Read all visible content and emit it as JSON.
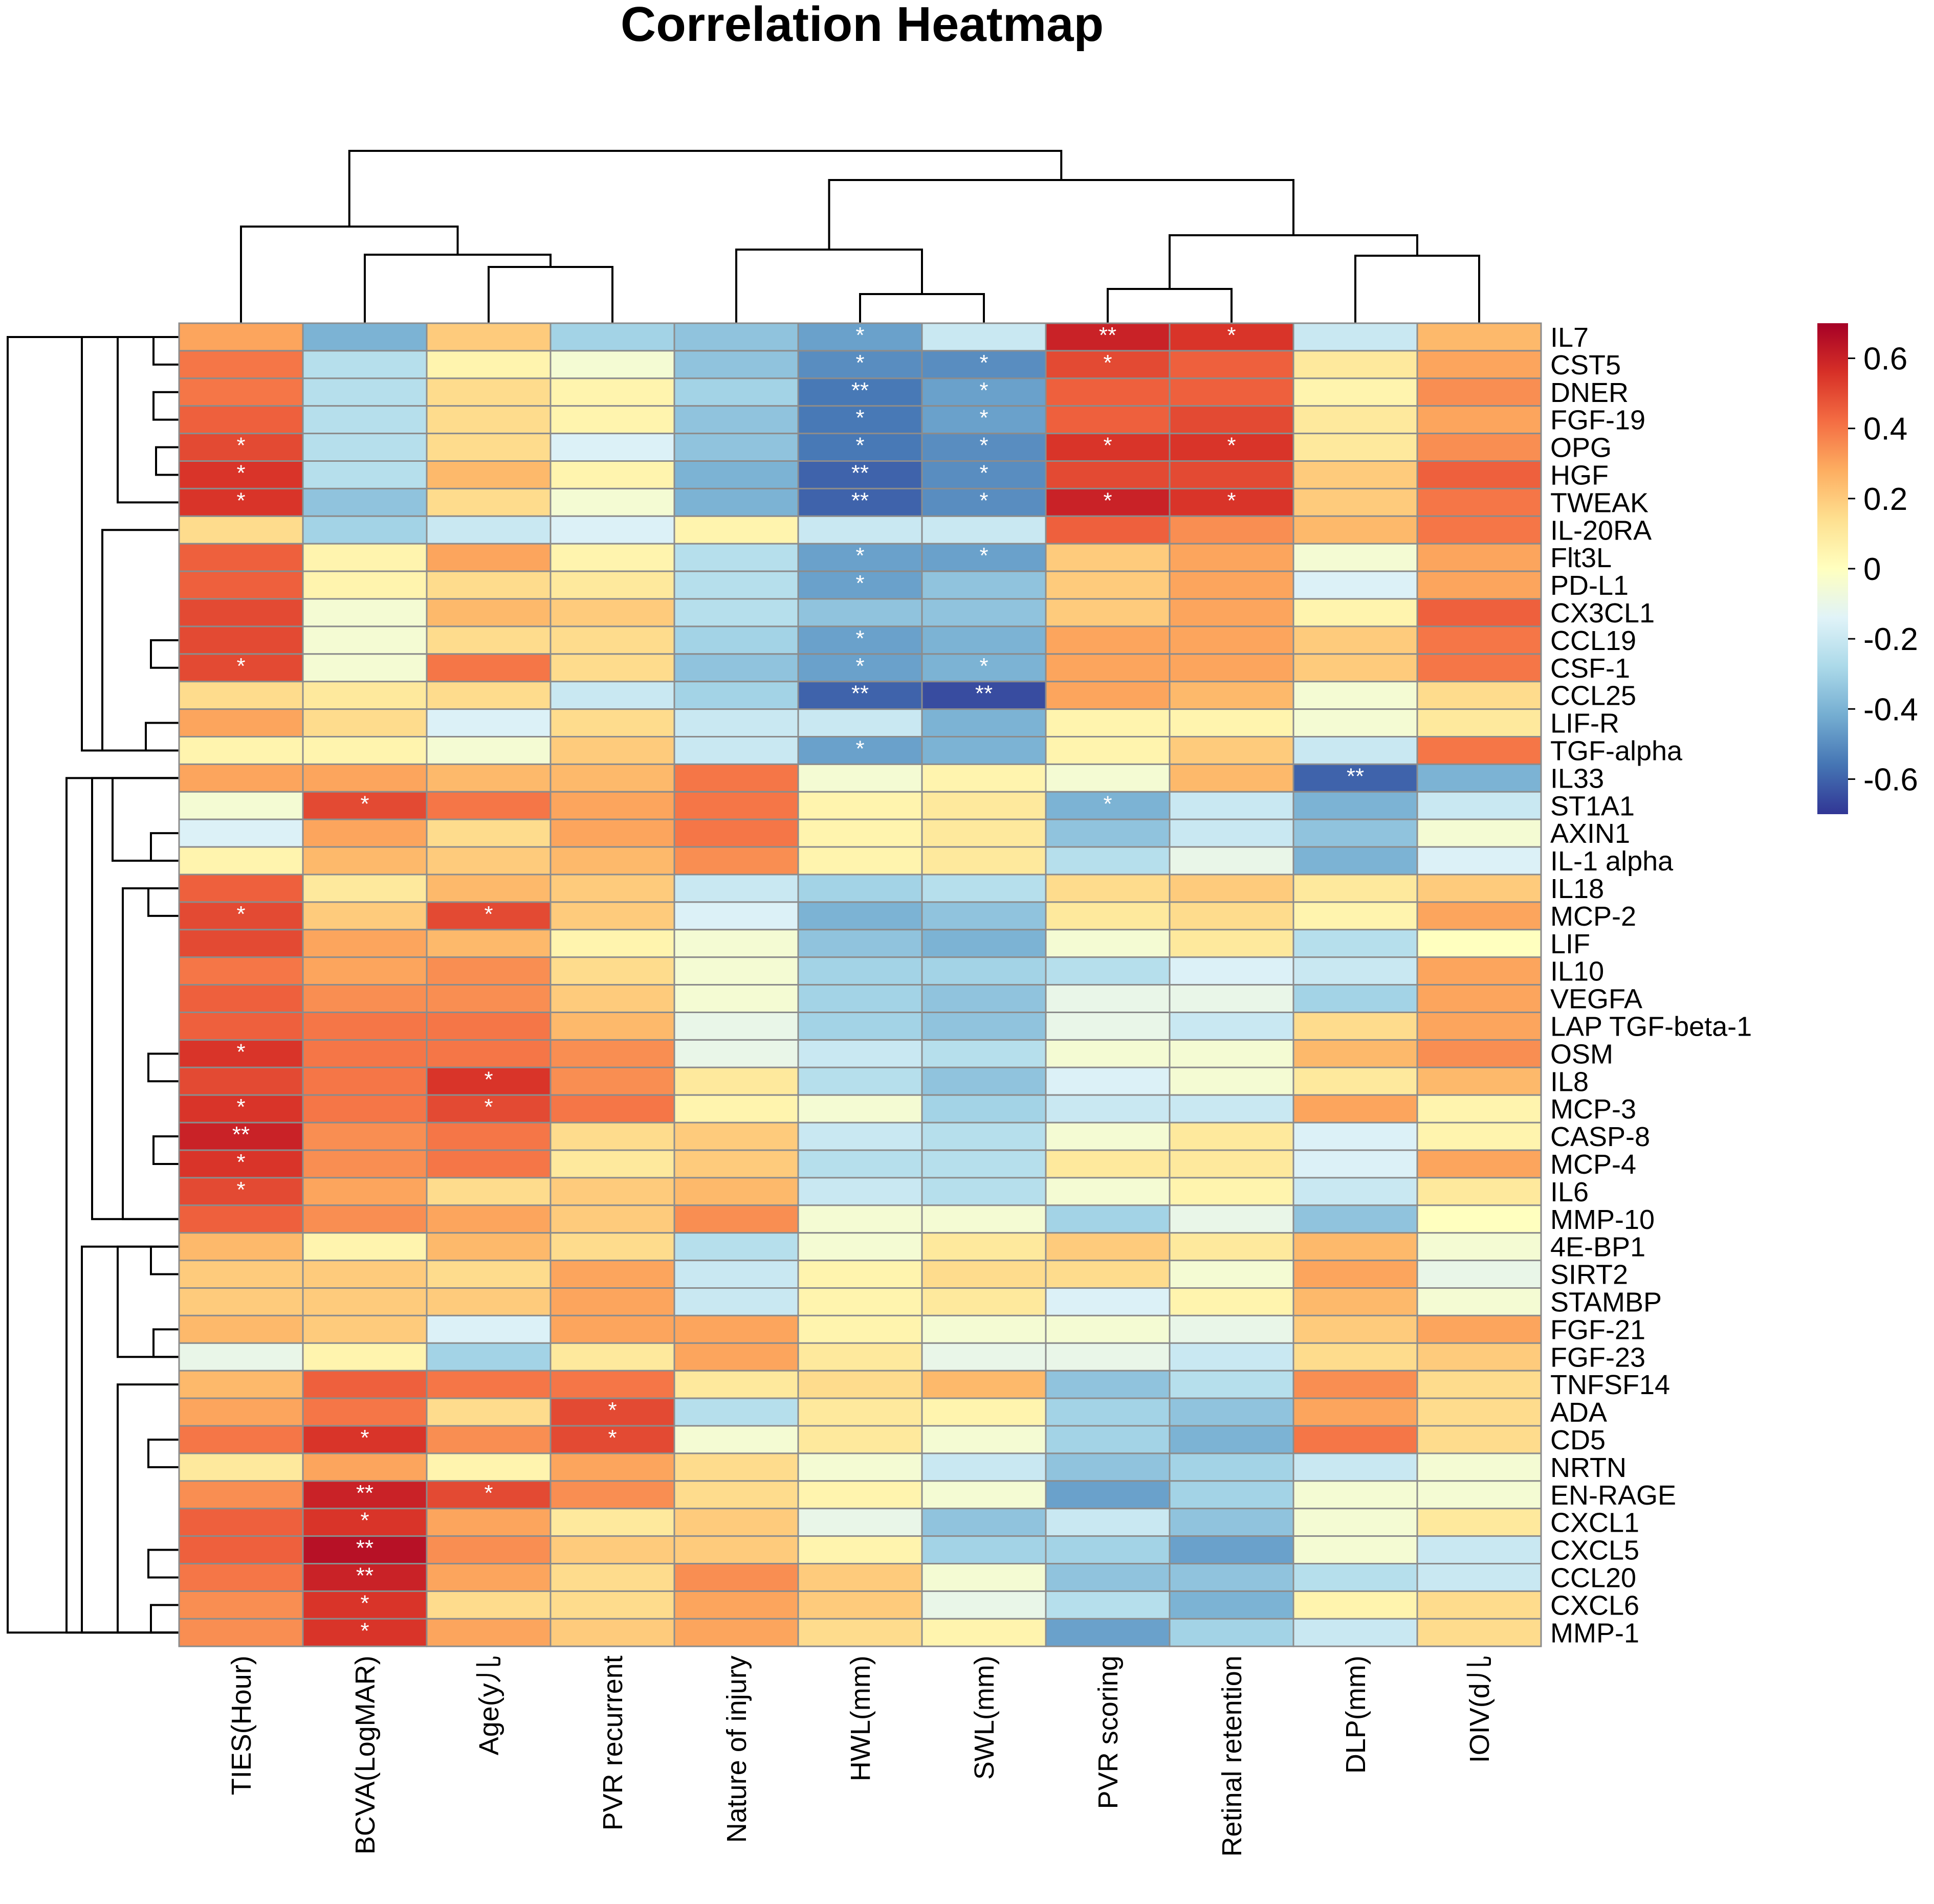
{
  "chart_data": {
    "type": "heatmap",
    "title": "Correlation Heatmap",
    "xlabel": "",
    "ylabel": "",
    "columns": [
      "TIES(Hour)",
      "BCVA(LogMAR)",
      "Age(y⼉",
      "PVR recurrent",
      "Nature of injury",
      "HWL(mm)",
      "SWL(mm)",
      "PVR scoring",
      "Retinal retention",
      "DLP(mm)",
      "IOIV(d⼉"
    ],
    "rows": [
      "IL7",
      "CST5",
      "DNER",
      "FGF-19",
      "OPG",
      "HGF",
      "TWEAK",
      "IL-20RA",
      "Flt3L",
      "PD-L1",
      "CX3CL1",
      "CCL19",
      "CSF-1",
      "CCL25",
      "LIF-R",
      "TGF-alpha",
      "IL33",
      "ST1A1",
      "AXIN1",
      "IL-1 alpha",
      "IL18",
      "MCP-2",
      "LIF",
      "IL10",
      "VEGFA",
      "LAP TGF-beta-1",
      "OSM",
      "IL8",
      "MCP-3",
      "CASP-8",
      "MCP-4",
      "IL6",
      "MMP-10",
      "4E-BP1",
      "SIRT2",
      "STAMBP",
      "FGF-21",
      "FGF-23",
      "TNFSF14",
      "ADA",
      "CD5",
      "NRTN",
      "EN-RAGE",
      "CXCL1",
      "CXCL5",
      "CCL20",
      "CXCL6",
      "MMP-1"
    ],
    "values": [
      [
        0.3,
        -0.4,
        0.2,
        -0.3,
        -0.35,
        -0.45,
        -0.2,
        0.6,
        0.55,
        -0.2,
        0.25
      ],
      [
        0.4,
        -0.25,
        0.05,
        -0.05,
        -0.35,
        -0.5,
        -0.5,
        0.5,
        0.45,
        0.1,
        0.3
      ],
      [
        0.4,
        -0.25,
        0.15,
        0.05,
        -0.3,
        -0.55,
        -0.45,
        0.45,
        0.45,
        0.05,
        0.35
      ],
      [
        0.45,
        -0.25,
        0.15,
        0.05,
        -0.35,
        -0.55,
        -0.45,
        0.45,
        0.5,
        0.1,
        0.3
      ],
      [
        0.5,
        -0.25,
        0.15,
        -0.15,
        -0.35,
        -0.55,
        -0.5,
        0.55,
        0.55,
        0.1,
        0.35
      ],
      [
        0.55,
        -0.25,
        0.25,
        0.05,
        -0.4,
        -0.6,
        -0.5,
        0.5,
        0.5,
        0.2,
        0.45
      ],
      [
        0.55,
        -0.35,
        0.15,
        -0.05,
        -0.4,
        -0.6,
        -0.5,
        0.6,
        0.55,
        0.2,
        0.4
      ],
      [
        0.15,
        -0.3,
        -0.2,
        -0.15,
        0.05,
        -0.2,
        -0.2,
        0.45,
        0.35,
        0.25,
        0.4
      ],
      [
        0.45,
        0.05,
        0.3,
        0.05,
        -0.25,
        -0.45,
        -0.45,
        0.2,
        0.3,
        -0.05,
        0.3
      ],
      [
        0.45,
        0.05,
        0.15,
        0.1,
        -0.25,
        -0.45,
        -0.35,
        0.2,
        0.3,
        -0.15,
        0.3
      ],
      [
        0.5,
        -0.05,
        0.25,
        0.2,
        -0.25,
        -0.35,
        -0.35,
        0.2,
        0.3,
        0.05,
        0.45
      ],
      [
        0.5,
        -0.05,
        0.15,
        0.15,
        -0.3,
        -0.45,
        -0.4,
        0.3,
        0.3,
        0.2,
        0.4
      ],
      [
        0.5,
        -0.05,
        0.4,
        0.15,
        -0.35,
        -0.45,
        -0.4,
        0.3,
        0.3,
        0.2,
        0.4
      ],
      [
        0.15,
        0.1,
        0.15,
        -0.2,
        -0.3,
        -0.6,
        -0.65,
        0.3,
        0.25,
        -0.05,
        0.15
      ],
      [
        0.3,
        0.15,
        -0.15,
        0.15,
        -0.2,
        -0.2,
        -0.4,
        0.05,
        0.05,
        -0.05,
        0.1
      ],
      [
        0.05,
        0.05,
        -0.05,
        0.2,
        -0.2,
        -0.45,
        -0.4,
        0.05,
        0.2,
        -0.2,
        0.4
      ],
      [
        0.3,
        0.3,
        0.25,
        0.25,
        0.4,
        -0.05,
        0.05,
        -0.05,
        0.25,
        -0.6,
        -0.4
      ],
      [
        -0.05,
        0.5,
        0.4,
        0.3,
        0.4,
        0.05,
        0.1,
        -0.4,
        -0.2,
        -0.4,
        -0.2
      ],
      [
        -0.15,
        0.3,
        0.15,
        0.3,
        0.4,
        0.05,
        0.1,
        -0.35,
        -0.2,
        -0.35,
        -0.05
      ],
      [
        0.05,
        0.25,
        0.2,
        0.25,
        0.35,
        0.05,
        0.1,
        -0.25,
        -0.1,
        -0.4,
        -0.15
      ],
      [
        0.45,
        0.1,
        0.25,
        0.2,
        -0.2,
        -0.3,
        -0.25,
        0.15,
        0.2,
        0.1,
        0.2
      ],
      [
        0.5,
        0.2,
        0.5,
        0.2,
        -0.15,
        -0.4,
        -0.35,
        0.1,
        0.15,
        0.05,
        0.3
      ],
      [
        0.5,
        0.3,
        0.25,
        0.05,
        -0.05,
        -0.35,
        -0.4,
        -0.05,
        0.1,
        -0.25,
        0.0
      ],
      [
        0.4,
        0.3,
        0.35,
        0.15,
        -0.05,
        -0.3,
        -0.3,
        -0.25,
        -0.15,
        -0.2,
        0.3
      ],
      [
        0.45,
        0.35,
        0.35,
        0.2,
        -0.05,
        -0.3,
        -0.35,
        -0.1,
        -0.1,
        -0.3,
        0.3
      ],
      [
        0.45,
        0.4,
        0.4,
        0.25,
        -0.1,
        -0.3,
        -0.35,
        -0.1,
        -0.2,
        0.15,
        0.3
      ],
      [
        0.55,
        0.4,
        0.4,
        0.35,
        -0.1,
        -0.2,
        -0.25,
        -0.05,
        -0.05,
        0.25,
        0.35
      ],
      [
        0.5,
        0.4,
        0.55,
        0.35,
        0.1,
        -0.25,
        -0.35,
        -0.15,
        -0.05,
        0.1,
        0.25
      ],
      [
        0.55,
        0.4,
        0.5,
        0.4,
        0.05,
        -0.05,
        -0.3,
        -0.2,
        -0.2,
        0.3,
        0.05
      ],
      [
        0.6,
        0.35,
        0.4,
        0.15,
        0.2,
        -0.2,
        -0.25,
        -0.05,
        0.1,
        -0.15,
        0.05
      ],
      [
        0.55,
        0.35,
        0.4,
        0.1,
        0.2,
        -0.25,
        -0.25,
        0.1,
        0.1,
        -0.15,
        0.3
      ],
      [
        0.5,
        0.3,
        0.15,
        0.2,
        0.25,
        -0.2,
        -0.25,
        -0.05,
        0.05,
        -0.2,
        0.1
      ],
      [
        0.45,
        0.35,
        0.3,
        0.2,
        0.35,
        -0.05,
        -0.05,
        -0.3,
        -0.1,
        -0.35,
        0.0
      ],
      [
        0.25,
        0.05,
        0.25,
        0.15,
        -0.25,
        -0.05,
        0.1,
        0.2,
        0.1,
        0.25,
        -0.05
      ],
      [
        0.2,
        0.2,
        0.15,
        0.3,
        -0.2,
        0.05,
        0.15,
        0.15,
        -0.05,
        0.3,
        -0.1
      ],
      [
        0.2,
        0.2,
        0.2,
        0.3,
        -0.2,
        0.05,
        0.1,
        -0.15,
        0.05,
        0.25,
        -0.05
      ],
      [
        0.25,
        0.2,
        -0.15,
        0.3,
        0.3,
        0.05,
        -0.05,
        -0.05,
        -0.1,
        0.2,
        0.3
      ],
      [
        -0.1,
        0.05,
        -0.3,
        0.1,
        0.3,
        0.1,
        -0.1,
        -0.1,
        -0.2,
        0.15,
        0.2
      ],
      [
        0.25,
        0.45,
        0.4,
        0.4,
        0.1,
        0.15,
        0.25,
        -0.35,
        -0.25,
        0.35,
        0.15
      ],
      [
        0.3,
        0.4,
        0.15,
        0.5,
        -0.25,
        0.1,
        0.05,
        -0.3,
        -0.35,
        0.3,
        0.15
      ],
      [
        0.4,
        0.55,
        0.35,
        0.5,
        -0.05,
        0.1,
        -0.05,
        -0.3,
        -0.4,
        0.4,
        0.15
      ],
      [
        0.1,
        0.3,
        0.05,
        0.3,
        0.15,
        -0.05,
        -0.2,
        -0.35,
        -0.3,
        -0.2,
        -0.05
      ],
      [
        0.35,
        0.6,
        0.5,
        0.35,
        0.15,
        0.05,
        -0.05,
        -0.45,
        -0.3,
        -0.05,
        -0.05
      ],
      [
        0.45,
        0.55,
        0.3,
        0.1,
        0.2,
        -0.1,
        -0.35,
        -0.2,
        -0.35,
        -0.05,
        0.1
      ],
      [
        0.45,
        0.65,
        0.35,
        0.2,
        0.2,
        0.05,
        -0.3,
        -0.3,
        -0.45,
        -0.05,
        -0.2
      ],
      [
        0.4,
        0.6,
        0.3,
        0.15,
        0.35,
        0.2,
        -0.05,
        -0.35,
        -0.35,
        -0.25,
        -0.2
      ],
      [
        0.35,
        0.55,
        0.15,
        0.15,
        0.3,
        0.2,
        -0.1,
        -0.25,
        -0.4,
        0.05,
        0.15
      ],
      [
        0.35,
        0.55,
        0.3,
        0.2,
        0.3,
        0.15,
        0.05,
        -0.45,
        -0.3,
        -0.2,
        0.15
      ]
    ],
    "significance": [
      [
        "",
        "",
        "",
        "",
        "",
        "*",
        "",
        "**",
        "*",
        "",
        ""
      ],
      [
        "",
        "",
        "",
        "",
        "",
        "*",
        "*",
        "*",
        "",
        "",
        ""
      ],
      [
        "",
        "",
        "",
        "",
        "",
        "**",
        "*",
        "",
        "",
        "",
        ""
      ],
      [
        "",
        "",
        "",
        "",
        "",
        "*",
        "*",
        "",
        "",
        "",
        ""
      ],
      [
        "*",
        "",
        "",
        "",
        "",
        "*",
        "*",
        "*",
        "*",
        "",
        ""
      ],
      [
        "*",
        "",
        "",
        "",
        "",
        "**",
        "*",
        "",
        "",
        "",
        ""
      ],
      [
        "*",
        "",
        "",
        "",
        "",
        "**",
        "*",
        "*",
        "*",
        "",
        ""
      ],
      [
        "",
        "",
        "",
        "",
        "",
        "",
        "",
        "",
        "",
        "",
        ""
      ],
      [
        "",
        "",
        "",
        "",
        "",
        "*",
        "*",
        "",
        "",
        "",
        ""
      ],
      [
        "",
        "",
        "",
        "",
        "",
        "*",
        "",
        "",
        "",
        "",
        ""
      ],
      [
        "",
        "",
        "",
        "",
        "",
        "",
        "",
        "",
        "",
        "",
        ""
      ],
      [
        "",
        "",
        "",
        "",
        "",
        "*",
        "",
        "",
        "",
        "",
        ""
      ],
      [
        "*",
        "",
        "",
        "",
        "",
        "*",
        "*",
        "",
        "",
        "",
        ""
      ],
      [
        "",
        "",
        "",
        "",
        "",
        "**",
        "**",
        "",
        "",
        "",
        ""
      ],
      [
        "",
        "",
        "",
        "",
        "",
        "",
        "",
        "",
        "",
        "",
        ""
      ],
      [
        "",
        "",
        "",
        "",
        "",
        "*",
        "",
        "",
        "",
        "",
        ""
      ],
      [
        "",
        "",
        "",
        "",
        "",
        "",
        "",
        "",
        "",
        "**",
        ""
      ],
      [
        "",
        "*",
        "",
        "",
        "",
        "",
        "",
        "*",
        "",
        "",
        ""
      ],
      [
        "",
        "",
        "",
        "",
        "",
        "",
        "",
        "",
        "",
        "",
        ""
      ],
      [
        "",
        "",
        "",
        "",
        "",
        "",
        "",
        "",
        "",
        "",
        ""
      ],
      [
        "",
        "",
        "",
        "",
        "",
        "",
        "",
        "",
        "",
        "",
        ""
      ],
      [
        "*",
        "",
        "*",
        "",
        "",
        "",
        "",
        "",
        "",
        "",
        ""
      ],
      [
        "",
        "",
        "",
        "",
        "",
        "",
        "",
        "",
        "",
        "",
        ""
      ],
      [
        "",
        "",
        "",
        "",
        "",
        "",
        "",
        "",
        "",
        "",
        ""
      ],
      [
        "",
        "",
        "",
        "",
        "",
        "",
        "",
        "",
        "",
        "",
        ""
      ],
      [
        "",
        "",
        "",
        "",
        "",
        "",
        "",
        "",
        "",
        "",
        ""
      ],
      [
        "*",
        "",
        "",
        "",
        "",
        "",
        "",
        "",
        "",
        "",
        ""
      ],
      [
        "",
        "",
        "*",
        "",
        "",
        "",
        "",
        "",
        "",
        "",
        ""
      ],
      [
        "*",
        "",
        "*",
        "",
        "",
        "",
        "",
        "",
        "",
        "",
        ""
      ],
      [
        "**",
        "",
        "",
        "",
        "",
        "",
        "",
        "",
        "",
        "",
        ""
      ],
      [
        "*",
        "",
        "",
        "",
        "",
        "",
        "",
        "",
        "",
        "",
        ""
      ],
      [
        "*",
        "",
        "",
        "",
        "",
        "",
        "",
        "",
        "",
        "",
        ""
      ],
      [
        "",
        "",
        "",
        "",
        "",
        "",
        "",
        "",
        "",
        "",
        ""
      ],
      [
        "",
        "",
        "",
        "",
        "",
        "",
        "",
        "",
        "",
        "",
        ""
      ],
      [
        "",
        "",
        "",
        "",
        "",
        "",
        "",
        "",
        "",
        "",
        ""
      ],
      [
        "",
        "",
        "",
        "",
        "",
        "",
        "",
        "",
        "",
        "",
        ""
      ],
      [
        "",
        "",
        "",
        "",
        "",
        "",
        "",
        "",
        "",
        "",
        ""
      ],
      [
        "",
        "",
        "",
        "",
        "",
        "",
        "",
        "",
        "",
        "",
        ""
      ],
      [
        "",
        "",
        "",
        "",
        "",
        "",
        "",
        "",
        "",
        "",
        ""
      ],
      [
        "",
        "",
        "",
        "*",
        "",
        "",
        "",
        "",
        "",
        "",
        ""
      ],
      [
        "",
        "*",
        "",
        "*",
        "",
        "",
        "",
        "",
        "",
        "",
        ""
      ],
      [
        "",
        "",
        "",
        "",
        "",
        "",
        "",
        "",
        "",
        "",
        ""
      ],
      [
        "",
        "**",
        "*",
        "",
        "",
        "",
        "",
        "",
        "",
        "",
        ""
      ],
      [
        "",
        "*",
        "",
        "",
        "",
        "",
        "",
        "",
        "",
        "",
        ""
      ],
      [
        "",
        "**",
        "",
        "",
        "",
        "",
        "",
        "",
        "",
        "",
        ""
      ],
      [
        "",
        "**",
        "",
        "",
        "",
        "",
        "",
        "",
        "",
        "",
        ""
      ],
      [
        "",
        "*",
        "",
        "",
        "",
        "",
        "",
        "",
        "",
        "",
        ""
      ],
      [
        "",
        "*",
        "",
        "",
        "",
        "",
        "",
        "",
        "",
        "",
        ""
      ]
    ],
    "color_scale": {
      "min": -0.7,
      "max": 0.7,
      "stops": [
        "#313695",
        "#4575b4",
        "#74add1",
        "#abd9e9",
        "#e0f3f8",
        "#ffffbf",
        "#fee090",
        "#fdae61",
        "#f46d43",
        "#d73027",
        "#a50026"
      ],
      "ticks": [
        0.6,
        0.4,
        0.2,
        0,
        -0.2,
        -0.4,
        -0.6
      ],
      "tick_labels": [
        "0.6",
        "0.4",
        "0.2",
        "0",
        "-0.2",
        "-0.4",
        "-0.6"
      ]
    },
    "legend_position": "right",
    "cell_border_color": "#8c8c8c",
    "column_dendrogram": "top",
    "row_dendrogram": "left"
  }
}
